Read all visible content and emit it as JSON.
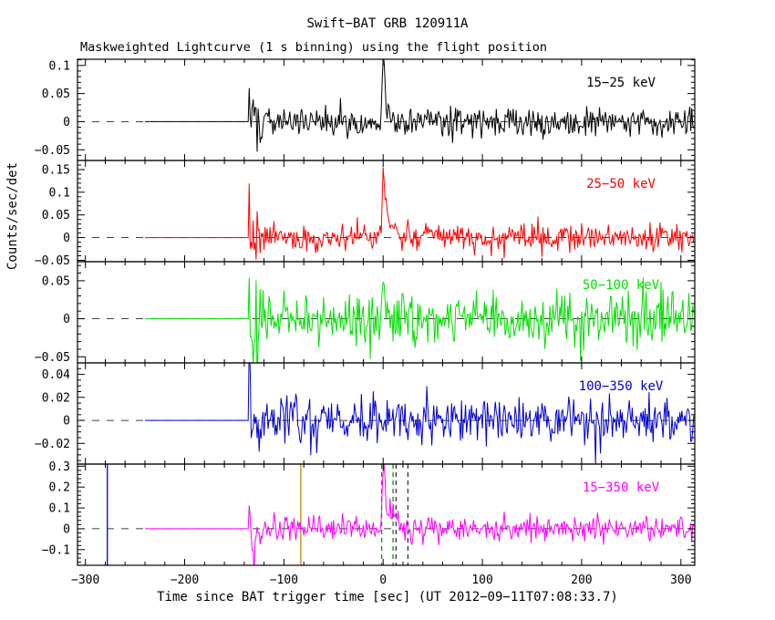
{
  "page": {
    "background": "#ffffff"
  },
  "chart_data": {
    "type": "line",
    "title": "Swift−BAT GRB 120911A",
    "subtitle": "Maskweighted Lightcurve (1 s binning) using the flight position",
    "xlabel": "Time since BAT trigger time [sec] (UT 2012−09−11T07:08:33.7)",
    "ylabel": "Counts/sec/det",
    "x_range": [
      -308,
      314
    ],
    "x_minor_step": 20,
    "x_major_step": 100,
    "x_ticks": [
      {
        "v": -300,
        "label": "−300"
      },
      {
        "v": -200,
        "label": "−200"
      },
      {
        "v": -100,
        "label": "−100"
      },
      {
        "v": 0,
        "label": "0"
      },
      {
        "v": 100,
        "label": "100"
      },
      {
        "v": 200,
        "label": "200"
      },
      {
        "v": 300,
        "label": "300"
      }
    ],
    "time_series": {
      "flat_start": -240,
      "data_start": -135,
      "data_end": 313,
      "bin_sec": 1,
      "edge_window": 12,
      "edge_factor": 2.0
    },
    "panels": [
      {
        "label": "15−25 keV",
        "color": "#000000",
        "y_range": [
          -0.069,
          0.111
        ],
        "y_major_step": 0.05,
        "y_minor_step": 0.01,
        "y_ticks": [
          {
            "v": 0.1,
            "label": "0.1"
          },
          {
            "v": 0.05,
            "label": "0.05"
          },
          {
            "v": 0,
            "label": "0"
          },
          {
            "v": -0.05,
            "label": "−0.05"
          }
        ],
        "noise_sigma": 0.013,
        "seed": 101,
        "bursts": [
          {
            "t": 0,
            "amp": 0.105,
            "rise": 1.0,
            "decay": 2.2
          },
          {
            "t": -135,
            "amp": 0.055,
            "rise": 0.5,
            "decay": 0.8
          }
        ]
      },
      {
        "label": "25−50 keV",
        "color": "#ff0000",
        "y_range": [
          -0.053,
          0.17
        ],
        "y_major_step": 0.05,
        "y_minor_step": 0.01,
        "y_ticks": [
          {
            "v": 0.15,
            "label": "0.15"
          },
          {
            "v": 0.1,
            "label": "0.1"
          },
          {
            "v": 0.05,
            "label": "0.05"
          },
          {
            "v": 0,
            "label": "0"
          },
          {
            "v": -0.05,
            "label": "−0.05"
          }
        ],
        "noise_sigma": 0.015,
        "seed": 202,
        "bursts": [
          {
            "t": 0,
            "amp": 0.145,
            "rise": 1.0,
            "decay": 2.2
          },
          {
            "t": 5,
            "amp": 0.04,
            "rise": 2.0,
            "decay": 5.0
          },
          {
            "t": -135,
            "amp": 0.06,
            "rise": 0.5,
            "decay": 0.8
          }
        ]
      },
      {
        "label": "50−100 keV",
        "color": "#00e000",
        "y_range": [
          -0.058,
          0.075
        ],
        "y_major_step": 0.05,
        "y_minor_step": 0.01,
        "y_ticks": [
          {
            "v": 0.05,
            "label": "0.05"
          },
          {
            "v": 0,
            "label": "0"
          },
          {
            "v": -0.05,
            "label": "−0.05"
          }
        ],
        "noise_sigma": 0.016,
        "seed": 303,
        "bursts": [
          {
            "t": 0,
            "amp": 0.052,
            "rise": 1.0,
            "decay": 2.2
          },
          {
            "t": -135,
            "amp": 0.05,
            "rise": 0.5,
            "decay": 0.8
          }
        ]
      },
      {
        "label": "100−350 keV",
        "color": "#0000cd",
        "y_range": [
          -0.038,
          0.05
        ],
        "y_major_step": 0.02,
        "y_minor_step": 0.005,
        "y_ticks": [
          {
            "v": 0.04,
            "label": "0.04"
          },
          {
            "v": 0.02,
            "label": "0.02"
          },
          {
            "v": 0,
            "label": "0"
          },
          {
            "v": -0.02,
            "label": "−0.02"
          }
        ],
        "noise_sigma": 0.01,
        "seed": 404,
        "bursts": [
          {
            "t": -135,
            "amp": 0.045,
            "rise": 0.5,
            "decay": 0.8
          }
        ]
      },
      {
        "label": "15−350 keV",
        "color": "#ff00ff",
        "y_range": [
          -0.175,
          0.31
        ],
        "y_major_step": 0.1,
        "y_minor_step": 0.02,
        "y_ticks": [
          {
            "v": 0.3,
            "label": "0.3"
          },
          {
            "v": 0.2,
            "label": "0.2"
          },
          {
            "v": 0.1,
            "label": "0.1"
          },
          {
            "v": 0,
            "label": "0"
          },
          {
            "v": -0.1,
            "label": "−0.1"
          }
        ],
        "noise_sigma": 0.032,
        "seed": 505,
        "bursts": [
          {
            "t": 0,
            "amp": 0.285,
            "rise": 1.0,
            "decay": 2.2
          },
          {
            "t": 6,
            "amp": 0.075,
            "rise": 2.5,
            "decay": 6.0
          },
          {
            "t": -130,
            "amp": -0.11,
            "rise": 1.5,
            "decay": 2.5
          }
        ],
        "markers": [
          {
            "t": -278,
            "color": "#0000cd",
            "style": "solid"
          },
          {
            "t": -83,
            "color": "#b8860b",
            "style": "solid"
          },
          {
            "t": -1.5,
            "color": "#009900",
            "style": "dashed"
          },
          {
            "t": 10,
            "color": "#009900",
            "style": "dashed"
          },
          {
            "t": 13,
            "color": "#333333",
            "style": "dashed"
          },
          {
            "t": 25,
            "color": "#333333",
            "style": "dashed"
          }
        ]
      }
    ]
  }
}
